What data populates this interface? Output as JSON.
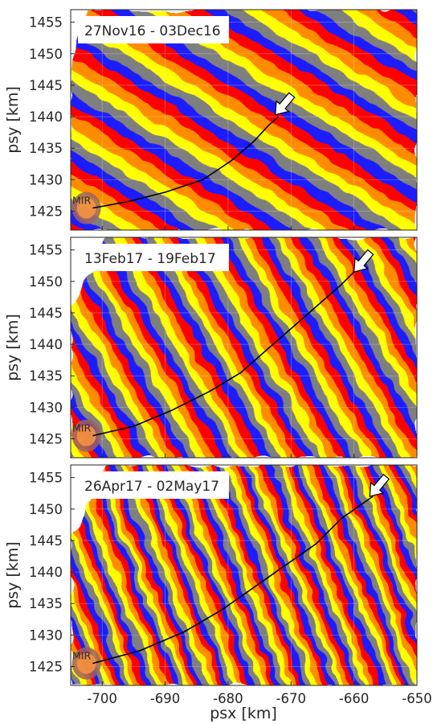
{
  "chart_data": {
    "type": "heatmap",
    "description_x_label": "psx [km]",
    "shared_xticks": [
      -700,
      -690,
      -680,
      -670,
      -660,
      -650
    ],
    "xlim": [
      -705,
      -650
    ],
    "colors": [
      "#1f1fff",
      "#7f7f7f",
      "#ffff00",
      "#ff8c00",
      "#ff0000"
    ],
    "panels": [
      {
        "id": "p1",
        "date_label": "27Nov16 - 03Dec16",
        "ylabel": "psy [km]",
        "ylim": [
          1422,
          1457
        ],
        "yticks": [
          1425,
          1430,
          1435,
          1440,
          1445,
          1450,
          1455
        ],
        "place_label": "MIR",
        "crack_path": [
          [
            -701.5,
            1425.5
          ],
          [
            -696,
            1426.5
          ],
          [
            -690,
            1428
          ],
          [
            -684,
            1430
          ],
          [
            -679.5,
            1433
          ],
          [
            -676,
            1436
          ],
          [
            -673.5,
            1438.7
          ],
          [
            -672,
            1440
          ]
        ],
        "arrow_tip": [
          -672.5,
          1440.3
        ]
      },
      {
        "id": "p2",
        "date_label": "13Feb17 - 19Feb17",
        "ylabel": "psy [km]",
        "ylim": [
          1422,
          1457
        ],
        "yticks": [
          1425,
          1430,
          1435,
          1440,
          1445,
          1450,
          1455
        ],
        "place_label": "MIR",
        "crack_path": [
          [
            -701.5,
            1425.5
          ],
          [
            -695,
            1427
          ],
          [
            -689,
            1429.5
          ],
          [
            -683,
            1432.5
          ],
          [
            -678,
            1435.5
          ],
          [
            -674,
            1439
          ],
          [
            -670,
            1442.5
          ],
          [
            -666,
            1446
          ],
          [
            -662,
            1449.5
          ],
          [
            -660,
            1451.5
          ]
        ],
        "arrow_tip": [
          -660,
          1451.5
        ]
      },
      {
        "id": "p3",
        "date_label": "26Apr17 - 02May17",
        "ylabel": "psy [km]",
        "ylim": [
          1422,
          1457
        ],
        "yticks": [
          1425,
          1430,
          1435,
          1440,
          1445,
          1450,
          1455
        ],
        "place_label": "MIR",
        "crack_path": [
          [
            -701.5,
            1425.5
          ],
          [
            -694,
            1427.5
          ],
          [
            -687,
            1430.5
          ],
          [
            -681,
            1434
          ],
          [
            -676,
            1437.5
          ],
          [
            -671,
            1441
          ],
          [
            -666,
            1444.5
          ],
          [
            -662,
            1448.5
          ],
          [
            -657,
            1452
          ]
        ],
        "arrow_tip": [
          -657.5,
          1452
        ]
      }
    ]
  }
}
